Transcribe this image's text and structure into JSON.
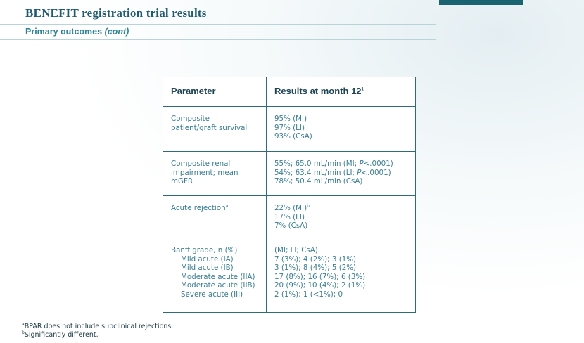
{
  "header": {
    "title": "BENEFIT registration trial results",
    "subtitle_main": "Primary outcomes",
    "subtitle_italic": "(cont)"
  },
  "table": {
    "col_param": "Parameter",
    "col_results": "Results at month 12",
    "col_results_sup": "1",
    "rows": [
      {
        "param": [
          "Composite",
          "patient/graft survival"
        ],
        "results": [
          "95% (MI)",
          "97% (LI)",
          "93% (CsA)"
        ]
      },
      {
        "param": [
          "Composite renal",
          "impairment; mean",
          "mGFR"
        ],
        "results": [
          "55%; 65.0 mL/min (MI; P<.0001)",
          "54%; 63.4 mL/min (LI; P<.0001)",
          "78%; 50.4 mL/min (CsA)"
        ]
      },
      {
        "param_text": "Acute rejection",
        "param_sup": "a",
        "results_first": "22% (MI)",
        "results_first_sup": "b",
        "results": [
          "17% (LI)",
          "7% (CsA)"
        ]
      },
      {
        "param_head": "Banff grade, n (%)",
        "param_sub": [
          "Mild acute (IA)",
          "Mild acute (IB)",
          "Moderate acute (IIA)",
          "Moderate acute (IIB)",
          "Severe acute (III)"
        ],
        "results": [
          "(MI; LI; CsA)",
          "7 (3%); 4 (2%); 3 (1%)",
          "3 (1%); 8 (4%); 5 (2%)",
          "17 (8%); 16 (7%); 6 (3%)",
          "20 (9%); 10 (4%); 2 (1%)",
          "2 (1%); 1 (<1%); 0"
        ]
      }
    ]
  },
  "footnotes": {
    "a_mark": "a",
    "a_text": "BPAR does not include subclinical rejections.",
    "b_mark": "b",
    "b_text": "Significantly different."
  },
  "colors": {
    "title": "#1f5a6e",
    "subtitle": "#2e8296",
    "table_border": "#2f6a79",
    "table_text": "#3a7e92",
    "accent_bar": "#1a6472"
  }
}
